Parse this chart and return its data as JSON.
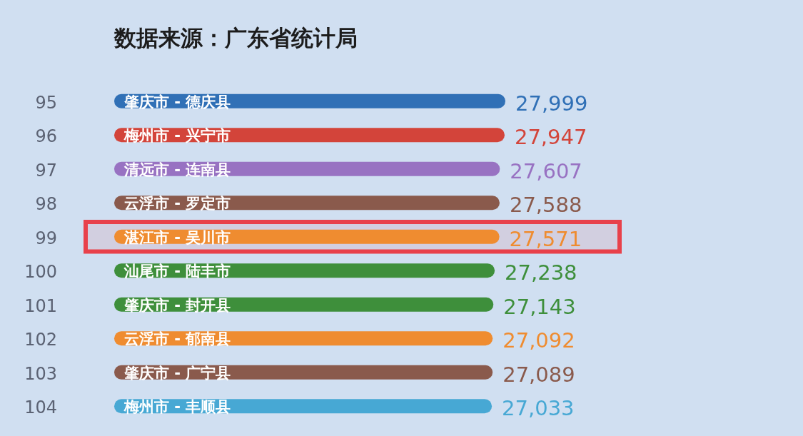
{
  "chart_data": {
    "type": "bar",
    "orientation": "horizontal",
    "title": "数据来源：广东省统计局",
    "categories": [
      "95",
      "96",
      "97",
      "98",
      "99",
      "100",
      "101",
      "102",
      "103",
      "104"
    ],
    "series": [
      {
        "name": "肇庆市 - 德庆县",
        "color": "#3070b6",
        "values": [
          27999,
          null,
          null,
          null,
          null,
          null,
          null,
          null,
          null,
          null
        ],
        "value_labels": [
          "27,999",
          null,
          null,
          null,
          null,
          null,
          null,
          null,
          null,
          null
        ]
      },
      {
        "name": "梅州市 - 兴宁市",
        "color": "#d3443a",
        "values": [
          null,
          27947,
          null,
          null,
          null,
          null,
          null,
          null,
          null,
          null
        ],
        "value_labels": [
          null,
          "27,947",
          null,
          null,
          null,
          null,
          null,
          null,
          null,
          null
        ]
      },
      {
        "name": "清远市 - 连南县",
        "color": "#9872c2",
        "values": [
          null,
          null,
          27607,
          null,
          null,
          null,
          null,
          null,
          null,
          null
        ],
        "value_labels": [
          null,
          null,
          "27,607",
          null,
          null,
          null,
          null,
          null,
          null,
          null
        ]
      },
      {
        "name": "云浮市 - 罗定市",
        "color": "#8a5a4c",
        "values": [
          null,
          null,
          null,
          27588,
          null,
          null,
          null,
          null,
          null,
          null
        ],
        "value_labels": [
          null,
          null,
          null,
          "27,588",
          null,
          null,
          null,
          null,
          null,
          null
        ]
      },
      {
        "name": "湛江市 - 吴川市",
        "color": "#ef8c30",
        "values": [
          null,
          null,
          null,
          null,
          27571,
          null,
          null,
          null,
          null,
          null
        ],
        "value_labels": [
          null,
          null,
          null,
          null,
          "27,571",
          null,
          null,
          null,
          null,
          null
        ]
      },
      {
        "name": "汕尾市 - 陆丰市",
        "color": "#3e8f3b",
        "values": [
          null,
          null,
          null,
          null,
          null,
          27238,
          null,
          null,
          null,
          null
        ],
        "value_labels": [
          null,
          null,
          null,
          null,
          null,
          "27,238",
          null,
          null,
          null,
          null
        ]
      },
      {
        "name": "肇庆市 - 封开县",
        "color": "#3e8f3b",
        "values": [
          null,
          null,
          null,
          null,
          null,
          null,
          27143,
          null,
          null,
          null
        ],
        "value_labels": [
          null,
          null,
          null,
          null,
          null,
          null,
          "27,143",
          null,
          null,
          null
        ]
      },
      {
        "name": "云浮市 - 郁南县",
        "color": "#ef8c30",
        "values": [
          null,
          null,
          null,
          null,
          null,
          null,
          null,
          27092,
          null,
          null
        ],
        "value_labels": [
          null,
          null,
          null,
          null,
          null,
          null,
          null,
          "27,092",
          null,
          null
        ]
      },
      {
        "name": "肇庆市 - 广宁县",
        "color": "#8a5a4c",
        "values": [
          null,
          null,
          null,
          null,
          null,
          null,
          null,
          null,
          27089,
          null
        ],
        "value_labels": [
          null,
          null,
          null,
          null,
          null,
          null,
          null,
          null,
          "27,089",
          null
        ]
      },
      {
        "name": "梅州市 - 丰顺县",
        "color": "#47a8d4",
        "values": [
          null,
          null,
          null,
          null,
          null,
          null,
          null,
          null,
          null,
          27033
        ],
        "value_labels": [
          null,
          null,
          null,
          null,
          null,
          null,
          null,
          null,
          null,
          "27,033"
        ]
      }
    ],
    "bands": [
      {
        "axis": "y",
        "from": "99",
        "to": "99",
        "color": "#e8414b"
      }
    ],
    "tick_labels": "y"
  }
}
